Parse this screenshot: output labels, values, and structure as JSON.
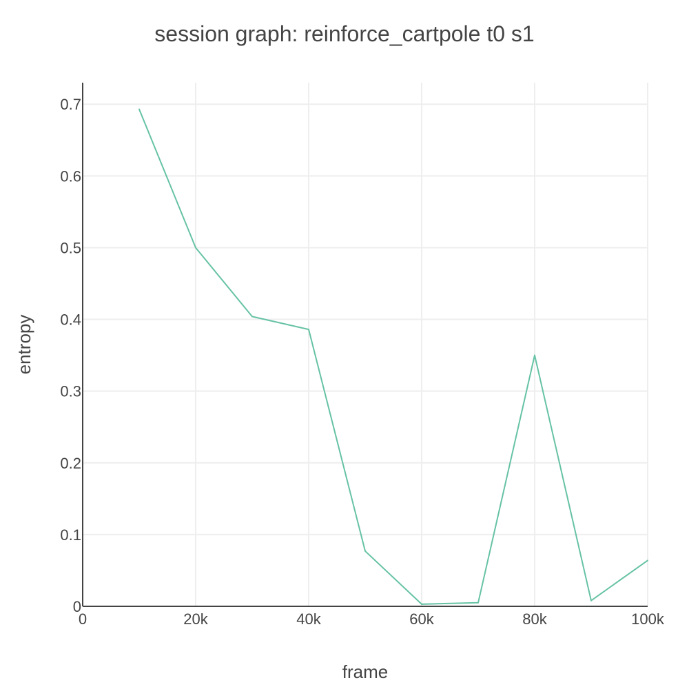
{
  "chart_data": {
    "type": "line",
    "title": "session graph: reinforce_cartpole t0 s1",
    "xlabel": "frame",
    "ylabel": "entropy",
    "xlim": [
      0,
      100000
    ],
    "ylim": [
      0,
      0.73
    ],
    "x_ticks": [
      {
        "value": 0,
        "label": "0"
      },
      {
        "value": 20000,
        "label": "20k"
      },
      {
        "value": 40000,
        "label": "40k"
      },
      {
        "value": 60000,
        "label": "60k"
      },
      {
        "value": 80000,
        "label": "80k"
      },
      {
        "value": 100000,
        "label": "100k"
      }
    ],
    "y_ticks": [
      {
        "value": 0,
        "label": "0"
      },
      {
        "value": 0.1,
        "label": "0.1"
      },
      {
        "value": 0.2,
        "label": "0.2"
      },
      {
        "value": 0.3,
        "label": "0.3"
      },
      {
        "value": 0.4,
        "label": "0.4"
      },
      {
        "value": 0.5,
        "label": "0.5"
      },
      {
        "value": 0.6,
        "label": "0.6"
      },
      {
        "value": 0.7,
        "label": "0.7"
      }
    ],
    "grid": true,
    "legend": "none",
    "series": [
      {
        "color": "#66c2a5",
        "x": [
          10000,
          20000,
          30000,
          40000,
          50000,
          60000,
          70000,
          80000,
          90000,
          100000
        ],
        "y": [
          0.693,
          0.5,
          0.404,
          0.386,
          0.077,
          0.003,
          0.005,
          0.35,
          0.008,
          0.064
        ]
      }
    ]
  }
}
